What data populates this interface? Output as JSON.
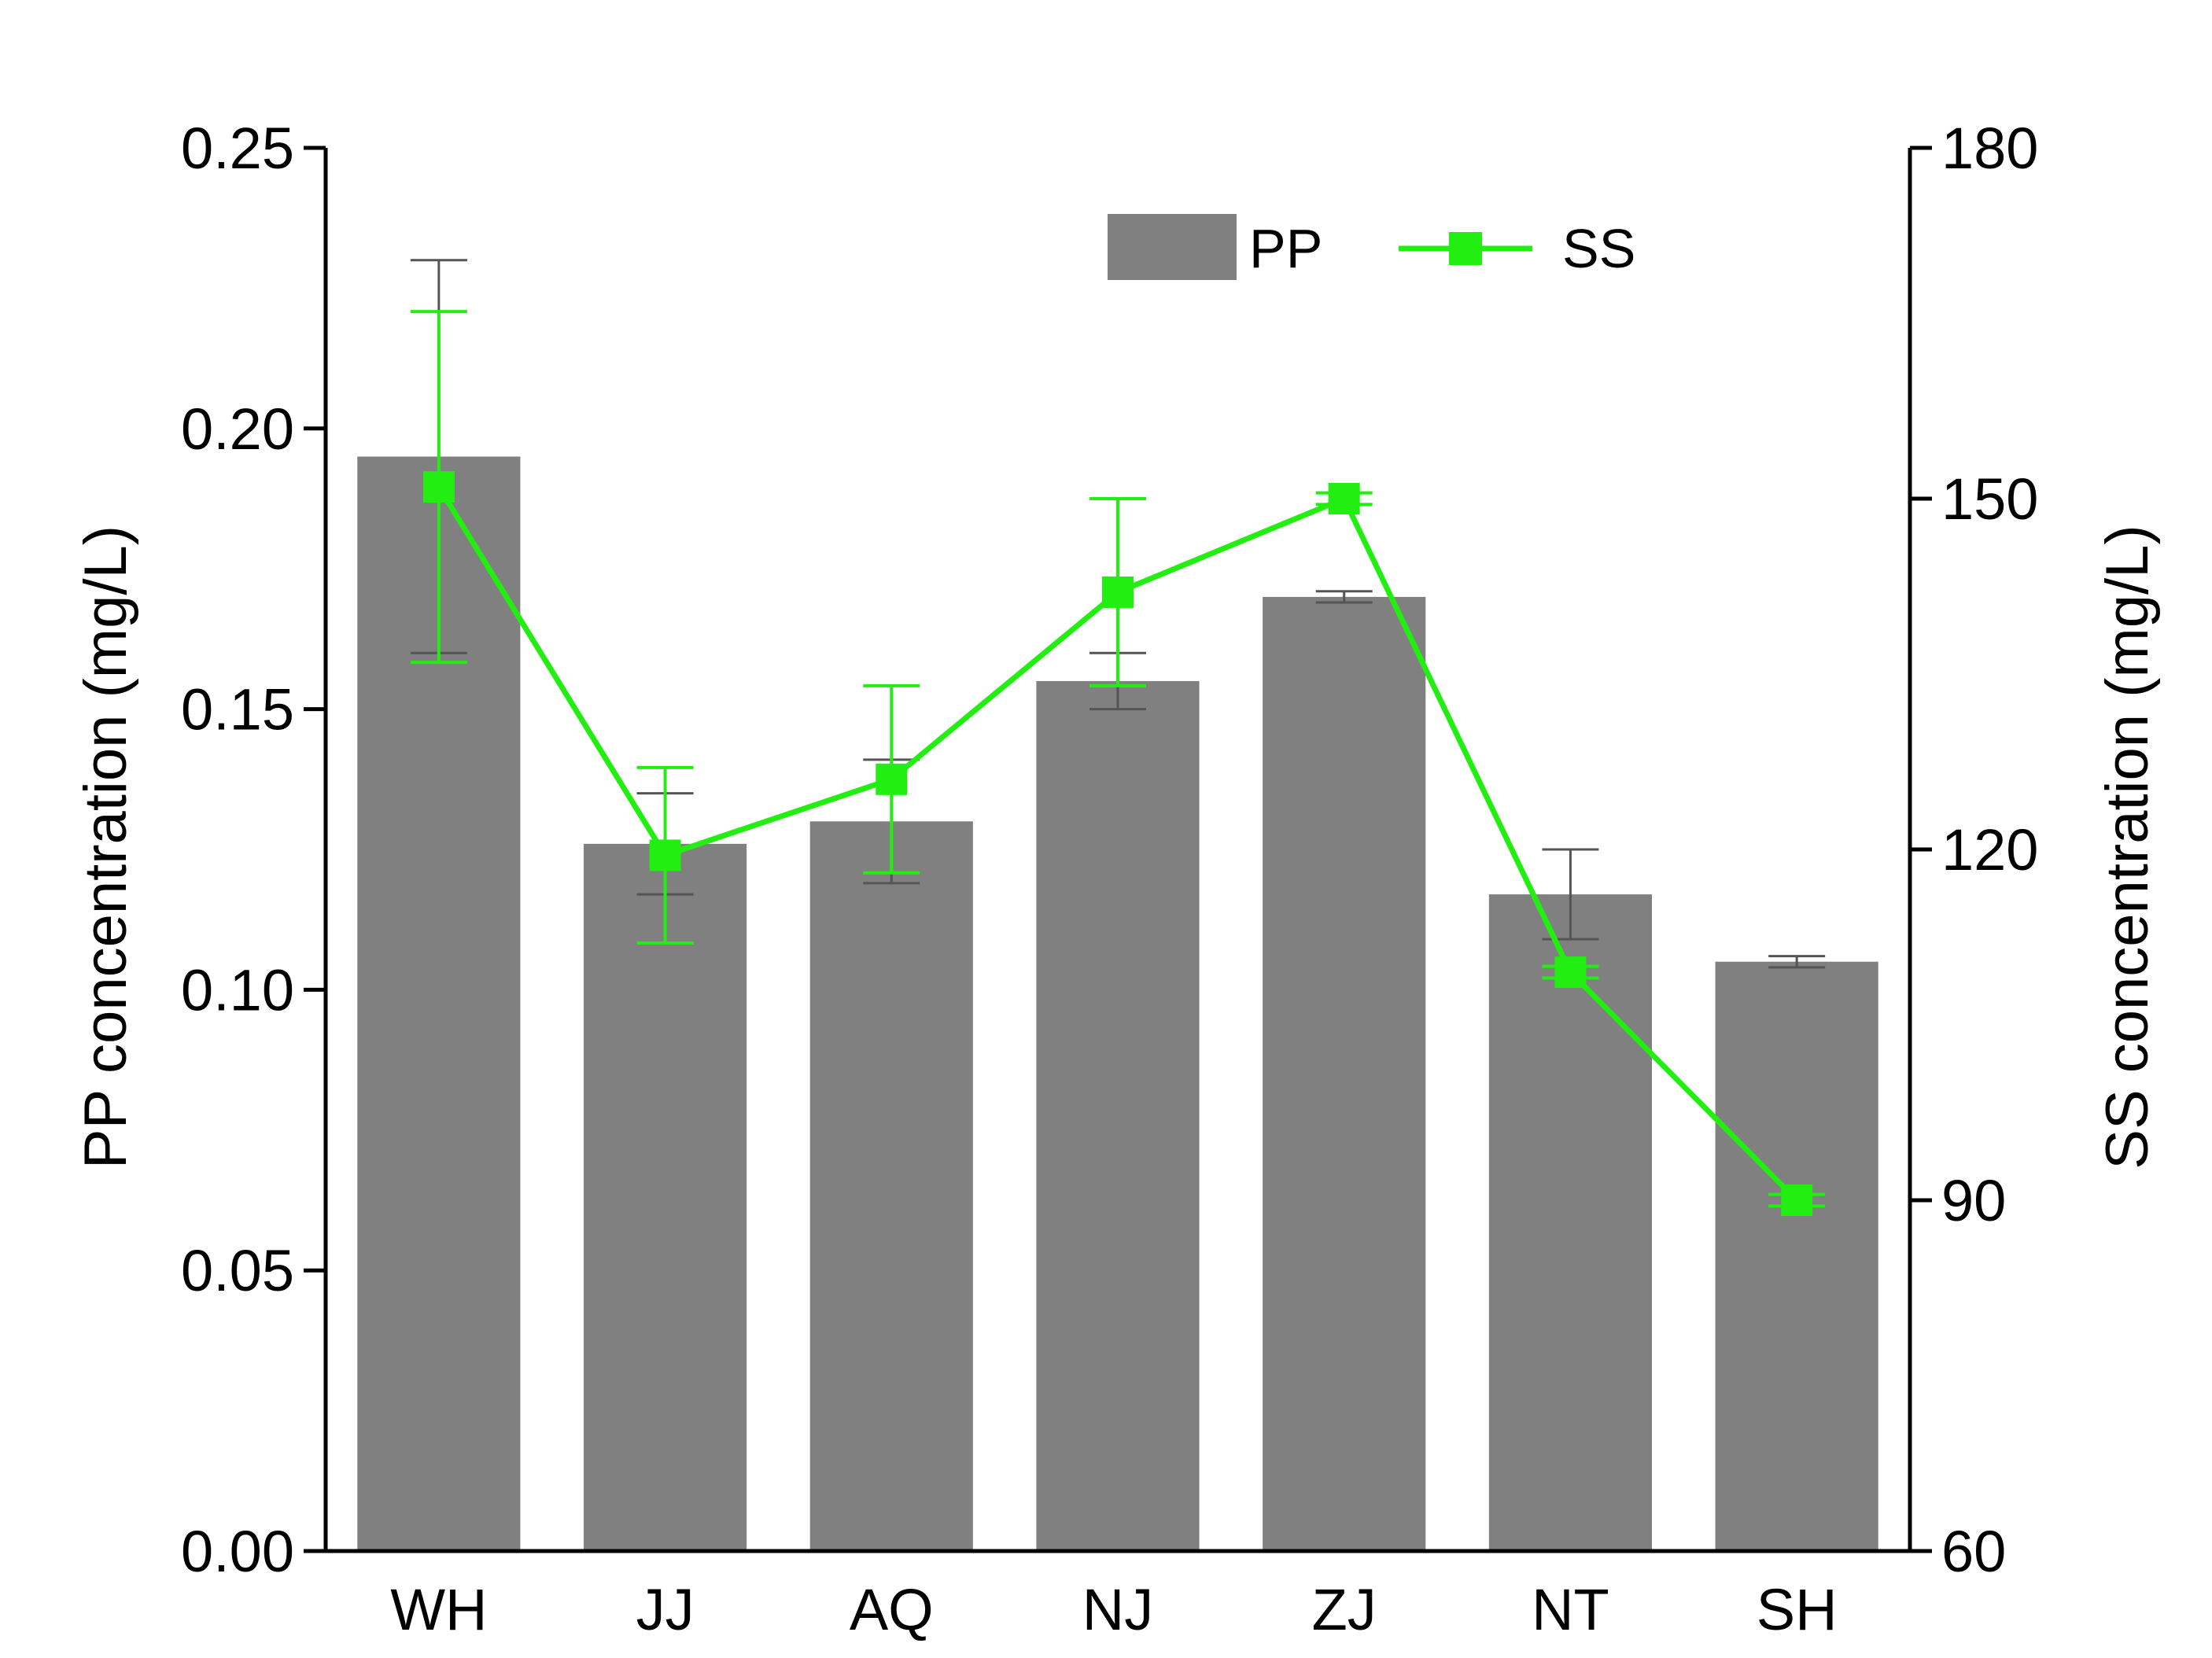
{
  "chart_data": {
    "type": "bar",
    "categories": [
      "WH",
      "JJ",
      "AQ",
      "NJ",
      "ZJ",
      "NT",
      "SH"
    ],
    "series": [
      {
        "name": "PP",
        "type": "bar",
        "axis": "left",
        "values": [
          0.195,
          0.126,
          0.13,
          0.155,
          0.17,
          0.117,
          0.105
        ],
        "error": [
          0.035,
          0.009,
          0.011,
          0.005,
          0.001,
          0.008,
          0.001
        ]
      },
      {
        "name": "SS",
        "type": "line",
        "axis": "right",
        "values": [
          151,
          119.5,
          126,
          142,
          150,
          109.5,
          90
        ],
        "error": [
          15,
          7.5,
          8,
          8,
          0.5,
          0.5,
          0.5
        ]
      }
    ],
    "y_left": {
      "label": "PP concentration (mg/L)",
      "ylim": [
        0,
        0.25
      ],
      "ticks": [
        "0.00",
        "0.05",
        "0.10",
        "0.15",
        "0.20",
        "0.25"
      ]
    },
    "y_right": {
      "label": "SS concentration (mg/L)",
      "ylim": [
        60,
        180
      ],
      "ticks": [
        "60",
        "90",
        "120",
        "150",
        "180"
      ]
    },
    "xlabel": "",
    "grid": false,
    "legend": "top-center",
    "colors": {
      "PP": "#808080",
      "SS": "#22ee11",
      "axis": "#000000",
      "pp_error": "#555555"
    }
  }
}
